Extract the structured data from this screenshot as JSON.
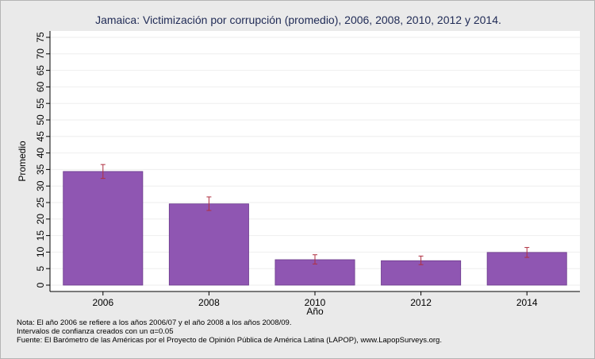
{
  "chart_data": {
    "type": "bar",
    "title": "Jamaica: Victimización por corrupción (promedio), 2006, 2008, 2010, 2012 y 2014.",
    "xlabel": "Año",
    "ylabel": "Promedio",
    "ylim": [
      0,
      75
    ],
    "yticks": [
      0,
      5,
      10,
      15,
      20,
      25,
      30,
      35,
      40,
      45,
      50,
      55,
      60,
      65,
      70,
      75
    ],
    "grid": true,
    "categories": [
      "2006",
      "2008",
      "2010",
      "2012",
      "2014"
    ],
    "values": [
      34.4,
      24.6,
      7.7,
      7.4,
      9.9
    ],
    "ci_low": [
      32.3,
      22.6,
      6.4,
      6.2,
      8.4
    ],
    "ci_high": [
      36.5,
      26.7,
      9.2,
      8.8,
      11.4
    ],
    "bar_color": "#8f56b2",
    "errorbar_color": "#b03040"
  },
  "notes": {
    "line1": "Nota: El año 2006 se refiere a los años 2006/07 y el año 2008 a los años 2008/09.",
    "line2_before": "Intervalos de confianza creados con un ",
    "line2_alpha": "α",
    "line2_after": "=0.05",
    "line3": "Fuente: El Barómetro de las Américas por el Proyecto de Opinión Pública de América Latina (LAPOP), www.LapopSurveys.org."
  }
}
